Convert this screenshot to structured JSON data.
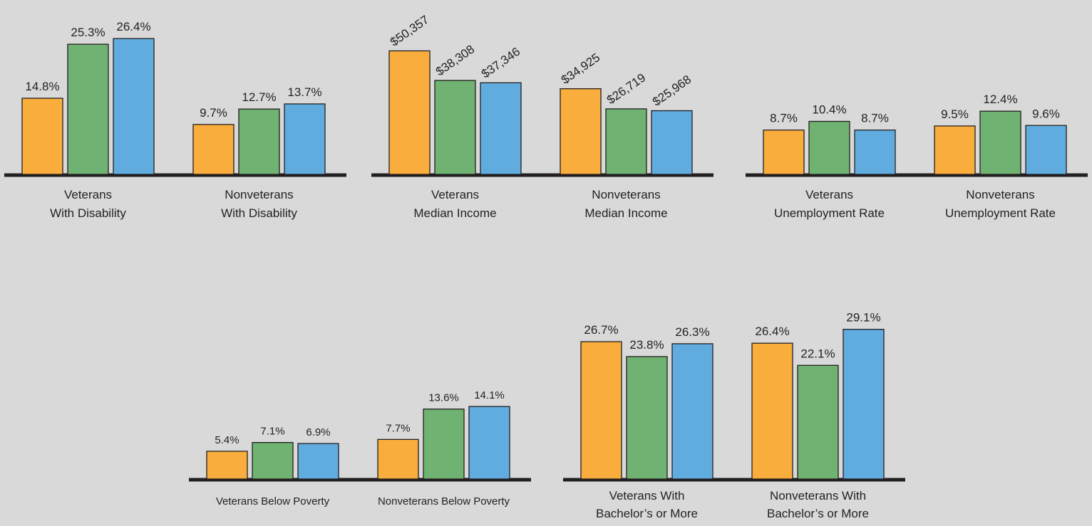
{
  "colors": {
    "background": "#d9d9d9",
    "bar_orange": "#f9ad3c",
    "bar_green": "#6fb272",
    "bar_blue": "#60acdf",
    "bar_stroke": "#231f20",
    "baseline": "#231f20"
  },
  "chart_data": [
    {
      "type": "bar",
      "title": "",
      "categories": [
        "Veterans\nWith Disability",
        "Nonveterans\nWith Disability"
      ],
      "series": [
        {
          "color": "#f9ad3c",
          "values": [
            14.8,
            9.7
          ],
          "labels": [
            "14.8%",
            "9.7%"
          ]
        },
        {
          "color": "#6fb272",
          "values": [
            25.3,
            12.7
          ],
          "labels": [
            "25.3%",
            "12.7%"
          ]
        },
        {
          "color": "#60acdf",
          "values": [
            26.4,
            13.7
          ],
          "labels": [
            "26.4%",
            "13.7%"
          ]
        }
      ],
      "ylim": [
        0,
        30
      ]
    },
    {
      "type": "bar",
      "title": "",
      "categories": [
        "Veterans\nMedian Income",
        "Nonveterans\nMedian Income"
      ],
      "series": [
        {
          "color": "#f9ad3c",
          "values": [
            50357,
            34925
          ],
          "labels": [
            "$50,357",
            "$34,925"
          ]
        },
        {
          "color": "#6fb272",
          "values": [
            38308,
            26719
          ],
          "labels": [
            "$38,308",
            "$26,719"
          ]
        },
        {
          "color": "#60acdf",
          "values": [
            37346,
            25968
          ],
          "labels": [
            "$37,346",
            "$25,968"
          ]
        }
      ],
      "ylim": [
        0,
        60000
      ],
      "rotated_labels": true
    },
    {
      "type": "bar",
      "title": "",
      "categories": [
        "Veterans\nUnemployment Rate",
        "Nonveterans\nUnemployment Rate"
      ],
      "series": [
        {
          "color": "#f9ad3c",
          "values": [
            8.7,
            9.5
          ],
          "labels": [
            "8.7%",
            "9.5%"
          ]
        },
        {
          "color": "#6fb272",
          "values": [
            10.4,
            12.4
          ],
          "labels": [
            "10.4%",
            "12.4%"
          ]
        },
        {
          "color": "#60acdf",
          "values": [
            8.7,
            9.6
          ],
          "labels": [
            "8.7%",
            "9.6%"
          ]
        }
      ],
      "ylim": [
        0,
        20
      ]
    },
    {
      "type": "bar",
      "title": "",
      "categories": [
        "Veterans Below Poverty",
        "Nonveterans Below Poverty"
      ],
      "series": [
        {
          "color": "#f9ad3c",
          "values": [
            5.4,
            7.7
          ],
          "labels": [
            "5.4%",
            "7.7%"
          ]
        },
        {
          "color": "#6fb272",
          "values": [
            7.1,
            13.6
          ],
          "labels": [
            "7.1%",
            "13.6%"
          ]
        },
        {
          "color": "#60acdf",
          "values": [
            6.9,
            14.1
          ],
          "labels": [
            "6.9%",
            "14.1%"
          ]
        }
      ],
      "ylim": [
        0,
        20
      ]
    },
    {
      "type": "bar",
      "title": "",
      "categories": [
        "Veterans With\nBachelor’s or More",
        "Nonveterans With\nBachelor’s or More"
      ],
      "series": [
        {
          "color": "#f9ad3c",
          "values": [
            26.7,
            26.4
          ],
          "labels": [
            "26.7%",
            "26.4%"
          ]
        },
        {
          "color": "#6fb272",
          "values": [
            23.8,
            22.1
          ],
          "labels": [
            "23.8%",
            "22.1%"
          ]
        },
        {
          "color": "#60acdf",
          "values": [
            26.3,
            29.1
          ],
          "labels": [
            "26.3%",
            "29.1%"
          ]
        }
      ],
      "ylim": [
        0,
        30
      ]
    }
  ]
}
